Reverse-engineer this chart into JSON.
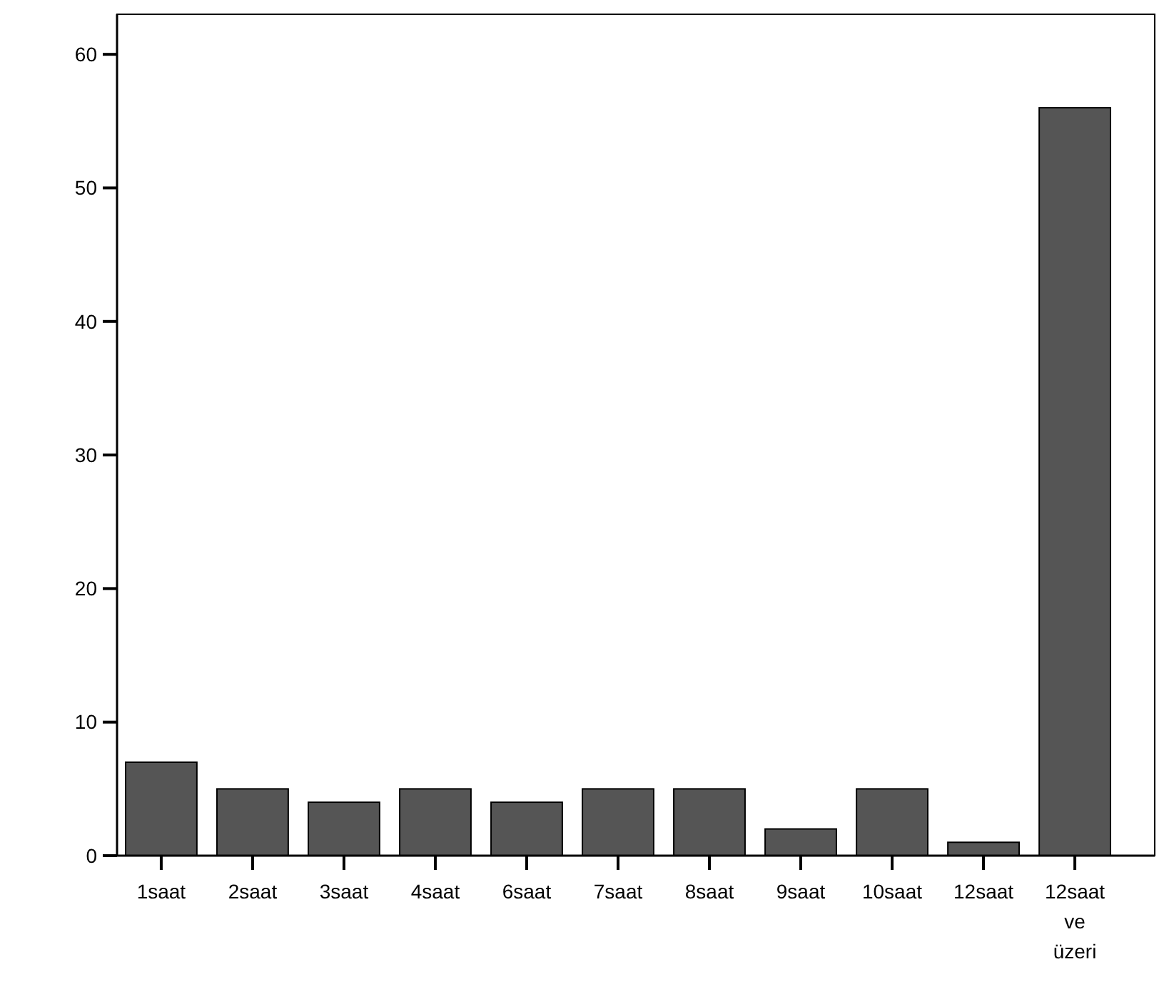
{
  "chart_data": {
    "type": "bar",
    "categories": [
      "1saat",
      "2saat",
      "3saat",
      "4saat",
      "6saat",
      "7saat",
      "8saat",
      "9saat",
      "10saat",
      "12saat",
      "12saat ve üzeri"
    ],
    "values": [
      7,
      5,
      4,
      5,
      4,
      5,
      5,
      2,
      5,
      1,
      56
    ],
    "color": "#555555",
    "ylim": [
      0,
      63
    ],
    "yticks": [
      0,
      10,
      20,
      30,
      40,
      50,
      60
    ],
    "grid": false
  }
}
